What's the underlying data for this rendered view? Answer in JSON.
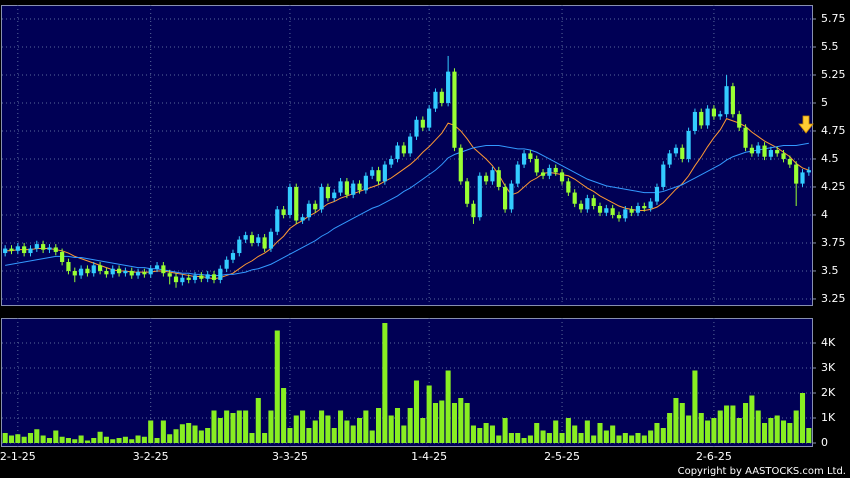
{
  "chart_data": [
    {
      "type": "candlestick",
      "open": [
        3.66,
        3.7,
        3.68,
        3.72,
        3.66,
        3.7,
        3.74,
        3.69,
        3.71,
        3.67,
        3.58,
        3.5,
        3.46,
        3.52,
        3.48,
        3.55,
        3.5,
        3.47,
        3.52,
        3.48,
        3.5,
        3.46,
        3.49,
        3.47,
        3.52,
        3.55,
        3.48,
        3.45,
        3.4,
        3.44,
        3.42,
        3.46,
        3.43,
        3.47,
        3.42,
        3.52,
        3.6,
        3.66,
        3.78,
        3.82,
        3.75,
        3.8,
        3.7,
        3.85,
        4.05,
        4.0,
        4.25,
        3.95,
        3.98,
        4.1,
        4.05,
        4.25,
        4.15,
        4.2,
        4.3,
        4.18,
        4.28,
        4.22,
        4.35,
        4.4,
        4.3,
        4.45,
        4.5,
        4.62,
        4.55,
        4.7,
        4.85,
        4.78,
        4.95,
        5.1,
        5.0,
        5.28,
        4.6,
        4.3,
        4.1,
        3.98,
        4.35,
        4.3,
        4.4,
        4.25,
        4.05,
        4.28,
        4.45,
        4.55,
        4.5,
        4.38,
        4.35,
        4.42,
        4.38,
        4.3,
        4.2,
        4.1,
        4.05,
        4.15,
        4.08,
        4.02,
        4.06,
        4.0,
        3.97,
        4.05,
        4.02,
        4.08,
        4.06,
        4.12,
        4.25,
        4.45,
        4.55,
        4.6,
        4.5,
        4.75,
        4.92,
        4.8,
        4.95,
        4.88,
        4.9,
        5.15,
        4.9,
        4.78,
        4.6,
        4.55,
        4.62,
        4.52,
        4.58,
        4.55,
        4.5,
        4.45,
        4.28,
        4.38
      ],
      "high": [
        3.73,
        3.73,
        3.75,
        3.75,
        3.73,
        3.77,
        3.77,
        3.74,
        3.74,
        3.7,
        3.61,
        3.53,
        3.55,
        3.55,
        3.58,
        3.58,
        3.53,
        3.55,
        3.55,
        3.53,
        3.53,
        3.52,
        3.52,
        3.55,
        3.58,
        3.58,
        3.51,
        3.48,
        3.47,
        3.47,
        3.49,
        3.49,
        3.5,
        3.5,
        3.55,
        3.63,
        3.69,
        3.81,
        3.85,
        3.85,
        3.83,
        3.83,
        3.88,
        4.08,
        4.08,
        4.28,
        4.28,
        4.01,
        4.13,
        4.13,
        4.28,
        4.28,
        4.23,
        4.33,
        4.33,
        4.31,
        4.31,
        4.38,
        4.43,
        4.43,
        4.48,
        4.53,
        4.65,
        4.65,
        4.73,
        4.88,
        4.88,
        4.98,
        5.13,
        5.13,
        5.42,
        5.31,
        4.63,
        4.33,
        4.13,
        4.38,
        4.38,
        4.43,
        4.43,
        4.28,
        4.31,
        4.48,
        4.58,
        4.58,
        4.53,
        4.41,
        4.45,
        4.45,
        4.41,
        4.33,
        4.23,
        4.13,
        4.18,
        4.18,
        4.11,
        4.09,
        4.09,
        4.03,
        4.08,
        4.08,
        4.11,
        4.11,
        4.15,
        4.28,
        4.48,
        4.58,
        4.63,
        4.63,
        4.78,
        4.95,
        4.95,
        4.98,
        4.98,
        4.93,
        5.25,
        5.18,
        4.93,
        4.81,
        4.63,
        4.65,
        4.65,
        4.61,
        4.61,
        4.58,
        4.53,
        4.48,
        4.41,
        4.43
      ],
      "low": [
        3.63,
        3.65,
        3.65,
        3.63,
        3.63,
        3.67,
        3.66,
        3.66,
        3.64,
        3.55,
        3.47,
        3.4,
        3.43,
        3.45,
        3.45,
        3.47,
        3.44,
        3.44,
        3.45,
        3.45,
        3.43,
        3.43,
        3.44,
        3.44,
        3.49,
        3.45,
        3.38,
        3.35,
        3.37,
        3.39,
        3.39,
        3.4,
        3.4,
        3.39,
        3.39,
        3.49,
        3.57,
        3.63,
        3.75,
        3.72,
        3.72,
        3.67,
        3.67,
        3.82,
        3.97,
        3.97,
        3.92,
        3.92,
        3.95,
        4.02,
        4.02,
        4.12,
        4.12,
        4.17,
        4.15,
        4.15,
        4.19,
        4.19,
        4.32,
        4.27,
        4.27,
        4.42,
        4.47,
        4.52,
        4.52,
        4.67,
        4.75,
        4.75,
        4.92,
        4.97,
        4.97,
        4.57,
        4.27,
        4.07,
        3.92,
        3.95,
        4.27,
        4.27,
        4.22,
        4.02,
        4.02,
        4.25,
        4.42,
        4.47,
        4.35,
        4.32,
        4.32,
        4.35,
        4.27,
        4.17,
        4.07,
        4.02,
        4.02,
        4.05,
        3.99,
        3.99,
        3.97,
        3.94,
        3.94,
        3.99,
        3.99,
        4.03,
        4.03,
        4.09,
        4.22,
        4.42,
        4.52,
        4.47,
        4.47,
        4.72,
        4.77,
        4.77,
        4.85,
        4.85,
        4.87,
        4.87,
        4.75,
        4.57,
        4.52,
        4.52,
        4.49,
        4.49,
        4.52,
        4.47,
        4.42,
        4.08,
        4.25,
        4.35
      ],
      "close": [
        3.7,
        3.68,
        3.72,
        3.66,
        3.7,
        3.74,
        3.69,
        3.71,
        3.67,
        3.58,
        3.5,
        3.46,
        3.52,
        3.48,
        3.55,
        3.5,
        3.47,
        3.52,
        3.48,
        3.5,
        3.46,
        3.49,
        3.47,
        3.52,
        3.55,
        3.48,
        3.45,
        3.4,
        3.44,
        3.42,
        3.46,
        3.43,
        3.47,
        3.42,
        3.52,
        3.6,
        3.66,
        3.78,
        3.82,
        3.75,
        3.8,
        3.7,
        3.85,
        4.05,
        4.0,
        4.25,
        3.95,
        3.98,
        4.1,
        4.05,
        4.25,
        4.15,
        4.2,
        4.3,
        4.18,
        4.28,
        4.22,
        4.35,
        4.4,
        4.3,
        4.45,
        4.5,
        4.62,
        4.55,
        4.7,
        4.85,
        4.78,
        4.95,
        5.1,
        5.0,
        5.28,
        4.6,
        4.3,
        4.1,
        3.98,
        4.35,
        4.3,
        4.4,
        4.25,
        4.05,
        4.28,
        4.45,
        4.55,
        4.5,
        4.38,
        4.35,
        4.42,
        4.38,
        4.3,
        4.2,
        4.1,
        4.05,
        4.15,
        4.08,
        4.02,
        4.06,
        4.0,
        3.97,
        4.05,
        4.02,
        4.08,
        4.06,
        4.12,
        4.25,
        4.45,
        4.55,
        4.6,
        4.5,
        4.75,
        4.92,
        4.8,
        4.95,
        4.88,
        4.9,
        5.15,
        4.9,
        4.78,
        4.6,
        4.55,
        4.62,
        4.52,
        4.58,
        4.55,
        4.5,
        4.45,
        4.28,
        4.38,
        4.4
      ],
      "up_color": "#33ccff",
      "down_color": "#99ff33",
      "series": [
        {
          "color": "#ff9933",
          "values": [
            3.68,
            3.68,
            3.69,
            3.69,
            3.69,
            3.7,
            3.7,
            3.7,
            3.69,
            3.68,
            3.66,
            3.63,
            3.61,
            3.59,
            3.57,
            3.55,
            3.53,
            3.51,
            3.5,
            3.5,
            3.49,
            3.49,
            3.49,
            3.49,
            3.5,
            3.5,
            3.49,
            3.48,
            3.47,
            3.46,
            3.45,
            3.45,
            3.44,
            3.43,
            3.44,
            3.46,
            3.48,
            3.52,
            3.56,
            3.59,
            3.63,
            3.66,
            3.7,
            3.76,
            3.81,
            3.88,
            3.92,
            3.95,
            3.99,
            4.02,
            4.06,
            4.1,
            4.12,
            4.15,
            4.17,
            4.19,
            4.21,
            4.23,
            4.25,
            4.27,
            4.3,
            4.33,
            4.37,
            4.41,
            4.45,
            4.5,
            4.56,
            4.61,
            4.67,
            4.73,
            4.82,
            4.8,
            4.75,
            4.68,
            4.6,
            4.55,
            4.5,
            4.44,
            4.36,
            4.26,
            4.18,
            4.2,
            4.25,
            4.3,
            4.33,
            4.37,
            4.38,
            4.37,
            4.36,
            4.35,
            4.32,
            4.28,
            4.24,
            4.21,
            4.17,
            4.14,
            4.11,
            4.08,
            4.06,
            4.05,
            4.04,
            4.04,
            4.05,
            4.07,
            4.11,
            4.17,
            4.23,
            4.28,
            4.35,
            4.44,
            4.52,
            4.61,
            4.69,
            4.76,
            4.86,
            4.84,
            4.82,
            4.79,
            4.74,
            4.7,
            4.66,
            4.63,
            4.6,
            4.56,
            4.52,
            4.46,
            4.42,
            4.4
          ]
        },
        {
          "color": "#3399ff",
          "values": [
            3.55,
            3.56,
            3.57,
            3.58,
            3.59,
            3.6,
            3.61,
            3.62,
            3.63,
            3.63,
            3.63,
            3.62,
            3.62,
            3.61,
            3.6,
            3.59,
            3.58,
            3.57,
            3.56,
            3.55,
            3.54,
            3.53,
            3.53,
            3.52,
            3.52,
            3.51,
            3.5,
            3.49,
            3.48,
            3.48,
            3.47,
            3.47,
            3.46,
            3.46,
            3.46,
            3.47,
            3.47,
            3.48,
            3.49,
            3.51,
            3.52,
            3.54,
            3.56,
            3.59,
            3.62,
            3.65,
            3.68,
            3.71,
            3.74,
            3.77,
            3.81,
            3.84,
            3.88,
            3.91,
            3.94,
            3.97,
            4.0,
            4.03,
            4.06,
            4.08,
            4.11,
            4.14,
            4.17,
            4.21,
            4.24,
            4.28,
            4.32,
            4.36,
            4.4,
            4.45,
            4.51,
            4.54,
            4.56,
            4.58,
            4.6,
            4.61,
            4.62,
            4.62,
            4.62,
            4.61,
            4.6,
            4.59,
            4.59,
            4.58,
            4.56,
            4.53,
            4.5,
            4.47,
            4.44,
            4.41,
            4.38,
            4.35,
            4.32,
            4.3,
            4.28,
            4.26,
            4.25,
            4.24,
            4.23,
            4.22,
            4.21,
            4.2,
            4.2,
            4.2,
            4.21,
            4.23,
            4.25,
            4.27,
            4.3,
            4.33,
            4.36,
            4.39,
            4.42,
            4.45,
            4.49,
            4.52,
            4.54,
            4.56,
            4.57,
            4.58,
            4.59,
            4.6,
            4.61,
            4.62,
            4.62,
            4.62,
            4.63,
            4.64
          ]
        }
      ],
      "ylim": [
        3.196,
        5.875
      ],
      "yticks": [
        3.25,
        3.5,
        3.75,
        4,
        4.25,
        4.5,
        4.75,
        5,
        5.25,
        5.5,
        5.75
      ],
      "xlim": [
        -0.5,
        127.5
      ],
      "grid": true
    },
    {
      "type": "bar",
      "values": [
        400,
        300,
        350,
        250,
        400,
        550,
        300,
        200,
        500,
        250,
        200,
        150,
        300,
        100,
        200,
        450,
        250,
        150,
        200,
        250,
        150,
        300,
        250,
        900,
        200,
        900,
        350,
        550,
        750,
        800,
        700,
        500,
        600,
        1300,
        1000,
        1300,
        1200,
        1300,
        1300,
        400,
        1800,
        400,
        1300,
        4500,
        2200,
        600,
        1100,
        1300,
        600,
        900,
        1300,
        1100,
        600,
        1300,
        900,
        700,
        1000,
        1300,
        500,
        1400,
        4800,
        1100,
        1400,
        700,
        1400,
        2500,
        1000,
        2300,
        1600,
        1700,
        2900,
        1600,
        1800,
        1600,
        700,
        600,
        800,
        700,
        300,
        1000,
        400,
        400,
        200,
        300,
        800,
        500,
        400,
        900,
        400,
        1000,
        700,
        400,
        900,
        300,
        800,
        500,
        700,
        300,
        400,
        300,
        400,
        300,
        500,
        800,
        600,
        1200,
        1800,
        1600,
        1100,
        2900,
        1200,
        900,
        1000,
        1300,
        1500,
        1500,
        1000,
        1600,
        1900,
        1300,
        800,
        1000,
        1100,
        900,
        800,
        1300,
        2000,
        600
      ],
      "color": "#88ee22",
      "ylim": [
        -160,
        5000
      ],
      "yticks": [
        0,
        {
          "value": 1000,
          "label": "1K"
        },
        {
          "value": 2000,
          "label": "2K"
        },
        {
          "value": 3000,
          "label": "3K"
        },
        {
          "value": 4000,
          "label": "4K"
        }
      ],
      "xlim": [
        -0.5,
        127.5
      ],
      "xticks": [
        {
          "value": 2,
          "label": "2-1-25"
        },
        {
          "value": 23,
          "label": "3-2-25"
        },
        {
          "value": 45,
          "label": "3-3-25"
        },
        {
          "value": 67,
          "label": "1-4-25"
        },
        {
          "value": 88,
          "label": "2-5-25"
        },
        {
          "value": 112,
          "label": "2-6-25"
        }
      ],
      "grid": true
    }
  ],
  "copyright": "Copyright by AASTOCKS.com Ltd."
}
